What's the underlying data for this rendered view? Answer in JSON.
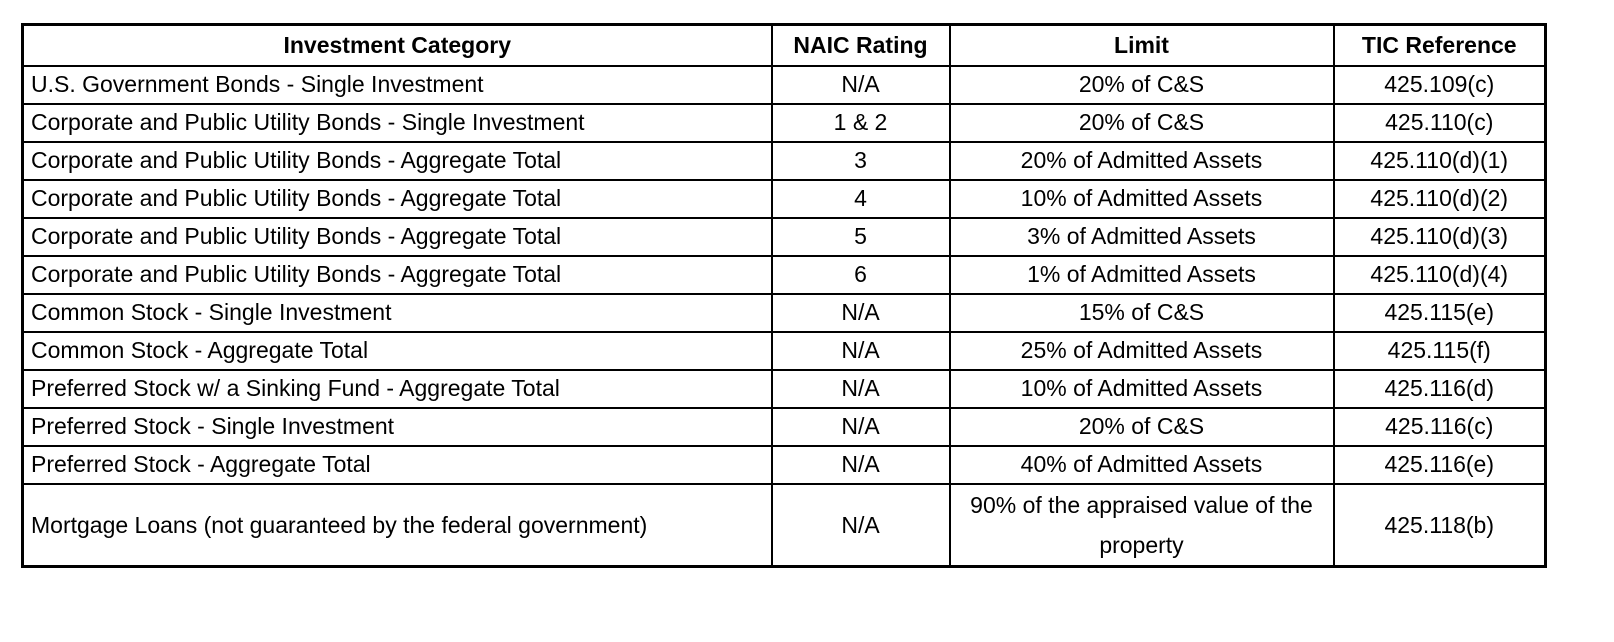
{
  "table": {
    "headers": [
      "Investment Category",
      "NAIC Rating",
      "Limit",
      "TIC Reference"
    ],
    "rows": [
      {
        "category": "U.S. Government Bonds - Single Investment",
        "rating": "N/A",
        "limit": "20% of C&S",
        "reference": "425.109(c)"
      },
      {
        "category": "Corporate and Public Utility Bonds - Single Investment",
        "rating": "1 & 2",
        "limit": "20% of C&S",
        "reference": "425.110(c)"
      },
      {
        "category": "Corporate and Public Utility Bonds - Aggregate Total",
        "rating": "3",
        "limit": "20% of Admitted Assets",
        "reference": "425.110(d)(1)"
      },
      {
        "category": "Corporate and Public Utility Bonds - Aggregate Total",
        "rating": "4",
        "limit": "10% of Admitted Assets",
        "reference": "425.110(d)(2)"
      },
      {
        "category": "Corporate and Public Utility Bonds - Aggregate Total",
        "rating": "5",
        "limit": "3% of Admitted Assets",
        "reference": "425.110(d)(3)"
      },
      {
        "category": "Corporate and Public Utility Bonds - Aggregate Total",
        "rating": "6",
        "limit": "1% of Admitted Assets",
        "reference": "425.110(d)(4)"
      },
      {
        "category": "Common Stock - Single Investment",
        "rating": "N/A",
        "limit": "15% of C&S",
        "reference": "425.115(e)"
      },
      {
        "category": "Common Stock - Aggregate Total",
        "rating": "N/A",
        "limit": "25% of Admitted Assets",
        "reference": "425.115(f)"
      },
      {
        "category": "Preferred Stock w/ a Sinking Fund - Aggregate Total",
        "rating": "N/A",
        "limit": "10% of Admitted Assets",
        "reference": "425.116(d)"
      },
      {
        "category": "Preferred Stock - Single Investment",
        "rating": "N/A",
        "limit": "20% of C&S",
        "reference": "425.116(c)"
      },
      {
        "category": "Preferred Stock - Aggregate Total",
        "rating": "N/A",
        "limit": "40% of Admitted Assets",
        "reference": "425.116(e)"
      },
      {
        "category": "Mortgage Loans (not guaranteed by the federal government)",
        "rating": "N/A",
        "limit": "90% of the appraised value of the property",
        "reference": "425.118(b)"
      }
    ]
  }
}
